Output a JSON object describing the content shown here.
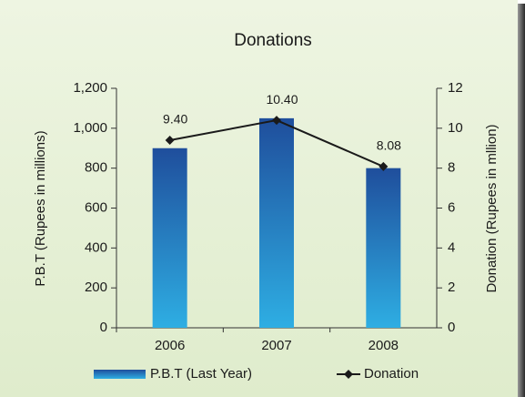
{
  "chart_data": {
    "type": "bar",
    "title": "Donations",
    "y_label": "P.B.T  (Rupees in millions)",
    "y2_label": "Donation (Rupees in mllion)",
    "categories": [
      "2006",
      "2007",
      "2008"
    ],
    "series": [
      {
        "name": "P.B.T (Last Year)",
        "type": "bar",
        "color": "#1f5aa8",
        "values": [
          900,
          1050,
          800
        ]
      },
      {
        "name": "Donation",
        "type": "line",
        "axis": "y2",
        "color": "#1a1a1a",
        "values": [
          9.4,
          10.4,
          8.08
        ],
        "value_labels": [
          "9.40",
          "10.40",
          "8.08"
        ]
      }
    ],
    "ylim": [
      0,
      1200
    ],
    "yticks": [
      0,
      200,
      400,
      600,
      800,
      {
        "value": 1000,
        "label": "1,000"
      },
      {
        "value": 1200,
        "label": "1,200"
      }
    ],
    "y2lim": [
      0,
      12
    ],
    "y2ticks": [
      0,
      2,
      4,
      6,
      8,
      10,
      12
    ],
    "legend": "bottom"
  }
}
